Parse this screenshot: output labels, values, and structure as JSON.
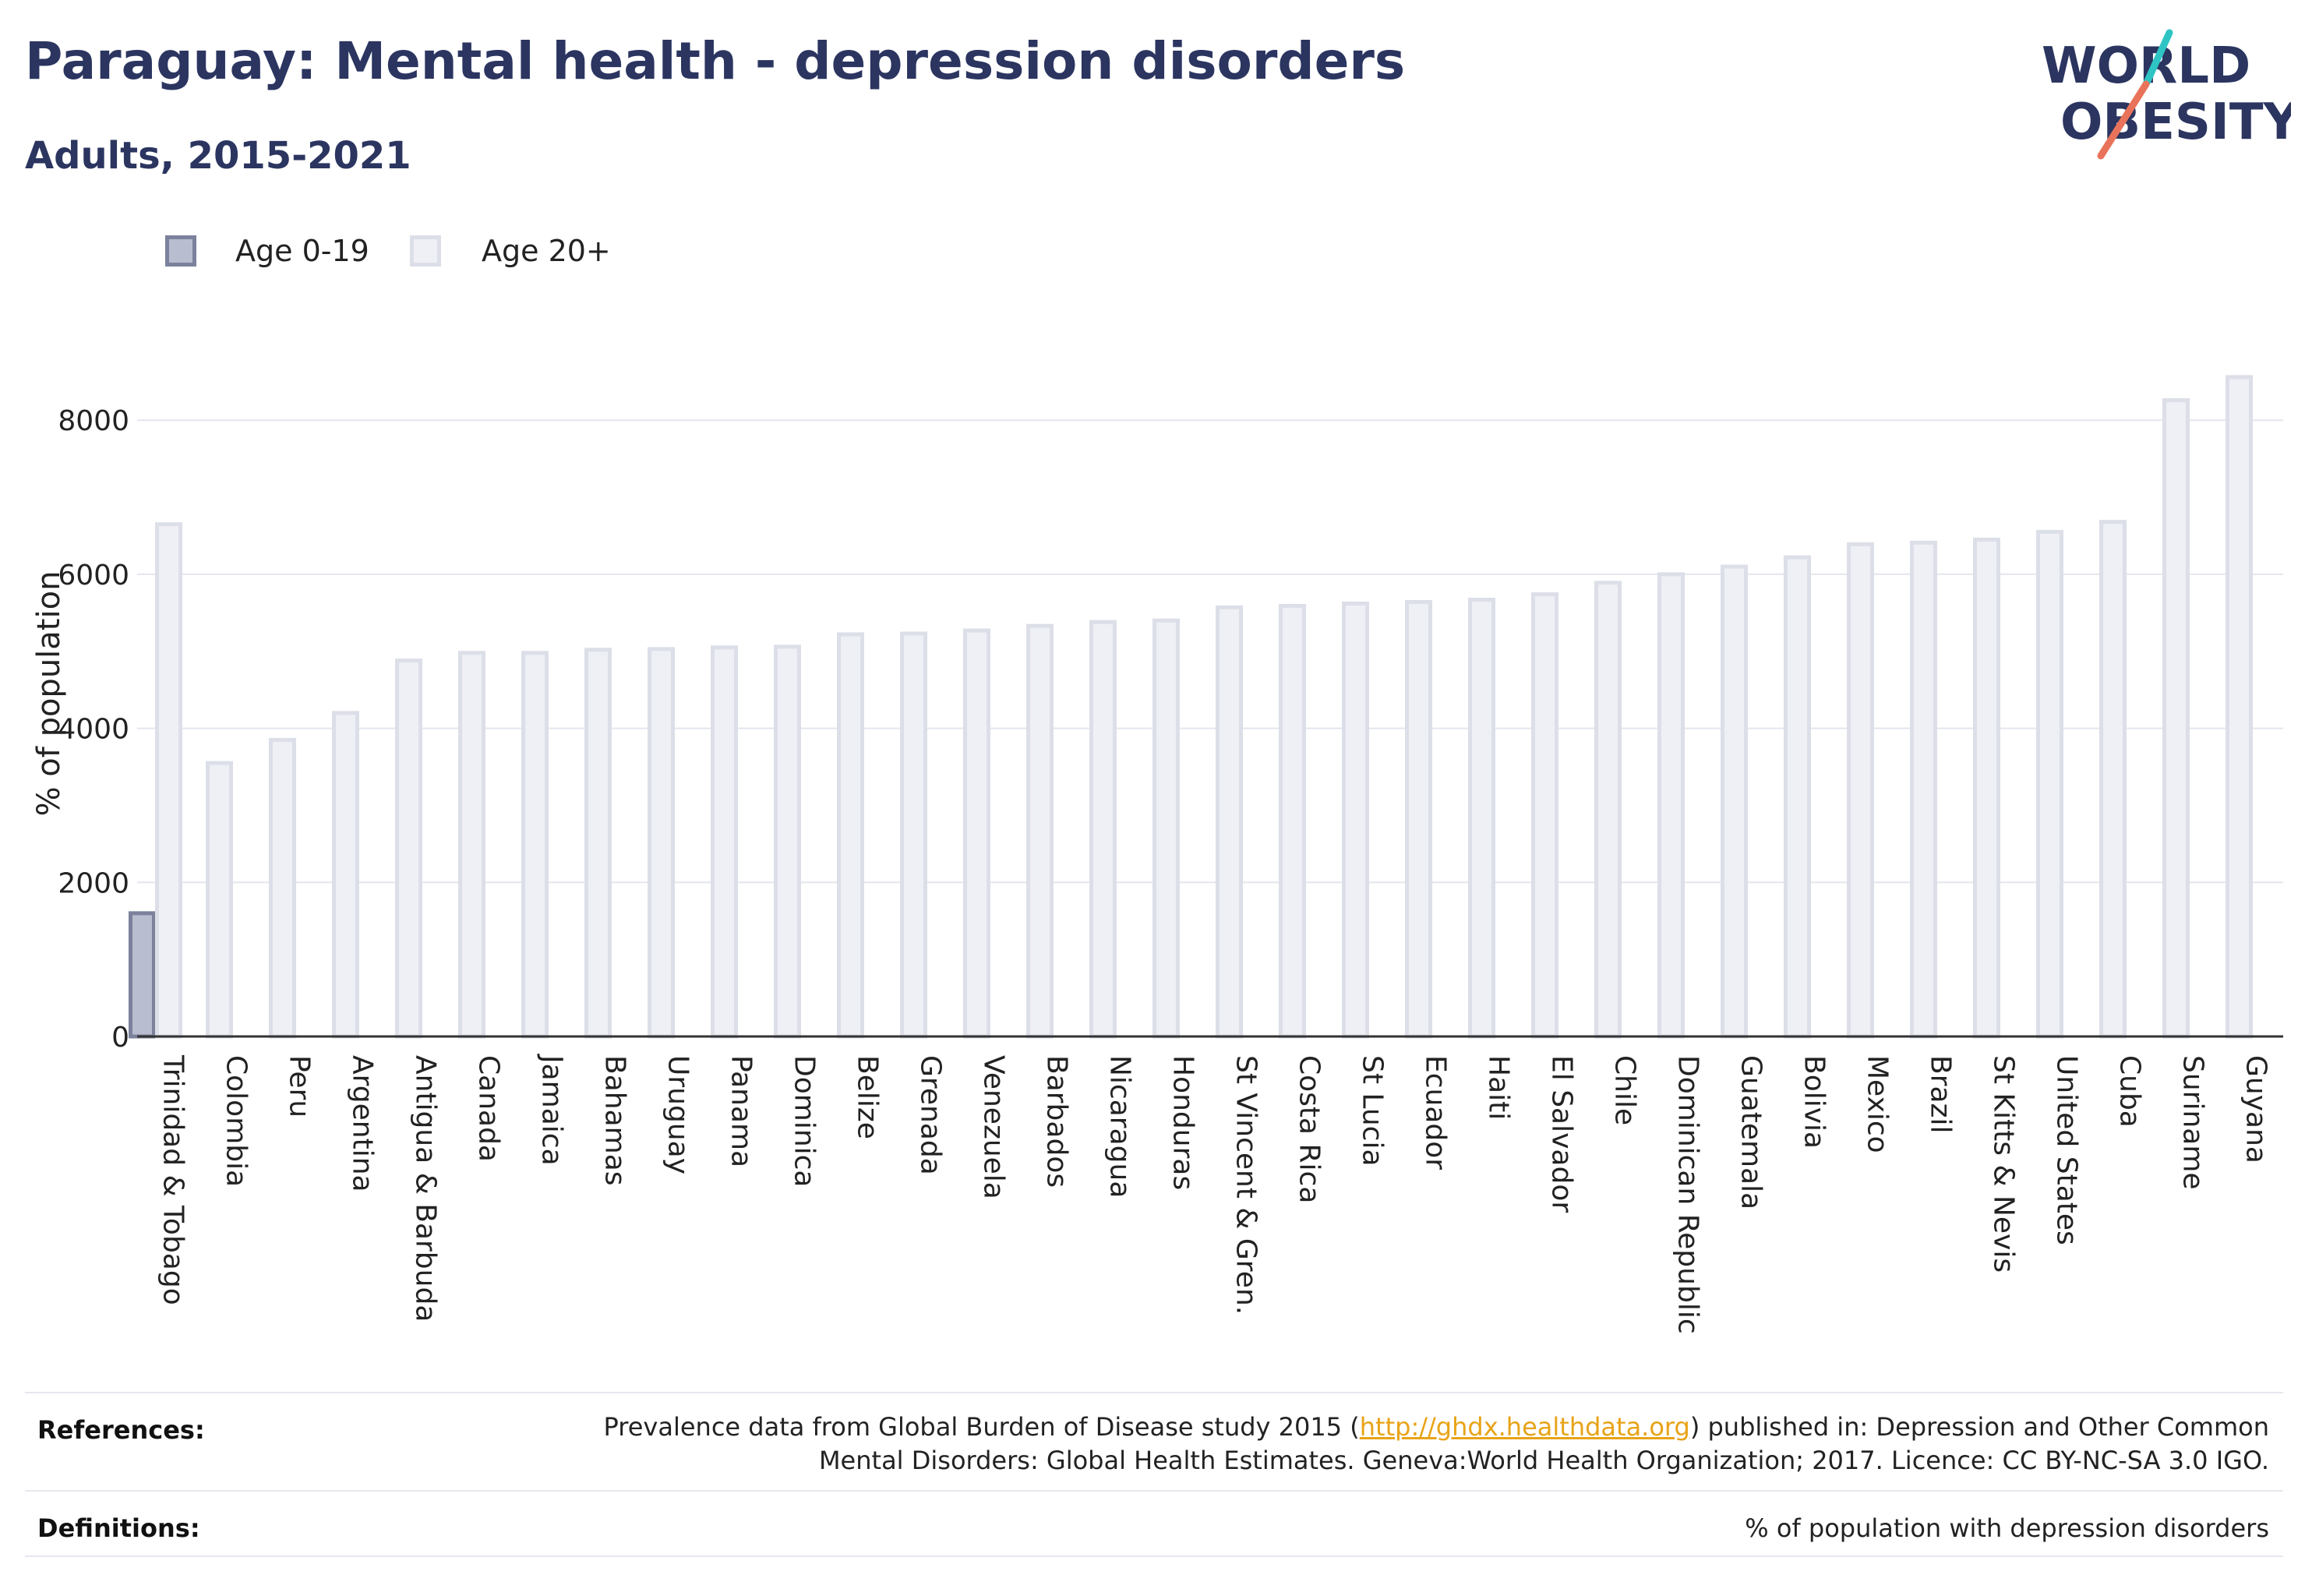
{
  "header": {
    "title": "Paraguay: Mental health - depression disorders",
    "subtitle": "Adults, 2015-2021"
  },
  "logo": {
    "line1": "WORLD",
    "line2": "OBESITY",
    "colors": {
      "text": "#2b3560",
      "slash_teal": "#2ec4c4",
      "slash_coral": "#e8735a"
    }
  },
  "colors": {
    "age_0_19_fill": "#b9bdd0",
    "age_0_19_stroke": "#7c819c",
    "age_20_plus_fill": "#eef0f5",
    "age_20_plus_stroke": "#dcdfe8",
    "gridline": "#e4e6ee",
    "baseline": "#333333",
    "title": "#2b3560"
  },
  "chart_data": {
    "type": "bar",
    "title": "",
    "xlabel": "",
    "ylabel": "% of population",
    "ylim": [
      0,
      8700
    ],
    "yticks": [
      0,
      2000,
      4000,
      6000,
      8000
    ],
    "grid": true,
    "legend_placement": "top-left",
    "categories": [
      "Trinidad & Tobago",
      "Colombia",
      "Peru",
      "Argentina",
      "Antigua & Barbuda",
      "Canada",
      "Jamaica",
      "Bahamas",
      "Uruguay",
      "Panama",
      "Dominica",
      "Belize",
      "Grenada",
      "Venezuela",
      "Barbados",
      "Nicaragua",
      "Honduras",
      "St Vincent & Gren.",
      "Costa Rica",
      "St Lucia",
      "Ecuador",
      "Haiti",
      "El Salvador",
      "Chile",
      "Dominican Republic",
      "Guatemala",
      "Bolivia",
      "Mexico",
      "Brazil",
      "St Kitts & Nevis",
      "United States",
      "Cuba",
      "Suriname",
      "Guyana"
    ],
    "series": [
      {
        "name": "Age 0-19",
        "values": [
          1600,
          null,
          null,
          null,
          null,
          null,
          null,
          null,
          null,
          null,
          null,
          null,
          null,
          null,
          null,
          null,
          null,
          null,
          null,
          null,
          null,
          null,
          null,
          null,
          null,
          null,
          null,
          null,
          null,
          null,
          null,
          null,
          null,
          null
        ]
      },
      {
        "name": "Age 20+",
        "values": [
          6650,
          3550,
          3850,
          4200,
          4880,
          4980,
          4980,
          5020,
          5030,
          5050,
          5060,
          5220,
          5230,
          5270,
          5330,
          5380,
          5400,
          5570,
          5590,
          5620,
          5640,
          5670,
          5740,
          5890,
          6000,
          6100,
          6220,
          6390,
          6410,
          6450,
          6550,
          6680,
          8260,
          8560
        ]
      }
    ]
  },
  "footer": {
    "references_label": "References:",
    "references_line1_pre": "Prevalence data from Global Burden of Disease study 2015 (",
    "references_link": "http://ghdx.healthdata.org",
    "references_line1_post": ") published in: Depression and Other Common",
    "references_line2": "Mental Disorders: Global Health Estimates. Geneva:World Health Organization; 2017. Licence: CC BY-NC-SA 3.0 IGO.",
    "definitions_label": "Definitions:",
    "definitions_text": "% of population with depression disorders"
  }
}
